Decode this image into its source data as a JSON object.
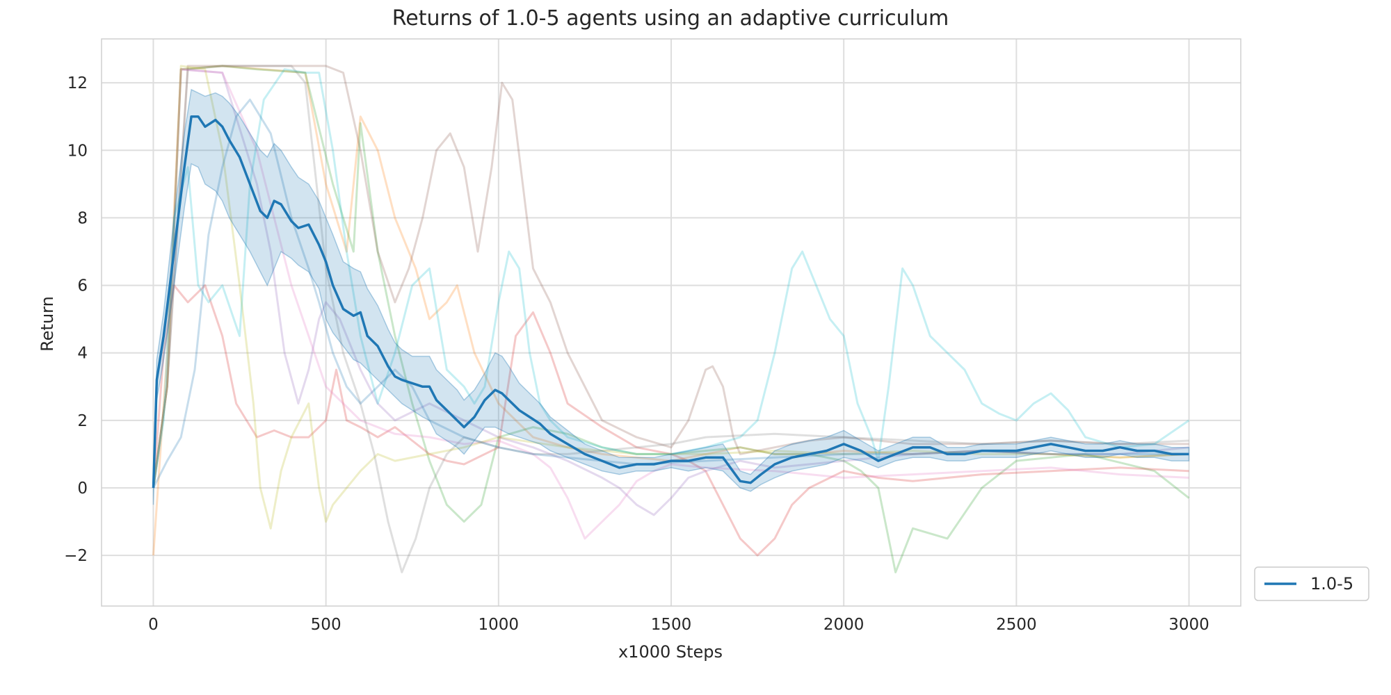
{
  "chart_data": {
    "type": "line",
    "title": "Returns of 1.0-5 agents using an adaptive curriculum",
    "xlabel": "x1000 Steps",
    "ylabel": "Return",
    "xlim": [
      -150,
      3150
    ],
    "ylim": [
      -3.5,
      13.3
    ],
    "xticks": [
      0,
      500,
      1000,
      1500,
      2000,
      2500,
      3000
    ],
    "xtick_labels": [
      "0",
      "500",
      "1000",
      "1500",
      "2000",
      "2500",
      "3000"
    ],
    "yticks": [
      -2,
      0,
      2,
      4,
      6,
      8,
      10,
      12
    ],
    "ytick_labels": [
      "−2",
      "0",
      "2",
      "4",
      "6",
      "8",
      "10",
      "12"
    ],
    "grid": true,
    "legend": {
      "position": "lower-right-outside",
      "entries": [
        "1.0-5"
      ]
    },
    "mean_series": {
      "name": "1.0-5",
      "color": "#1f77b4",
      "x": [
        0,
        10,
        30,
        60,
        90,
        110,
        130,
        150,
        180,
        200,
        220,
        250,
        280,
        310,
        330,
        350,
        370,
        400,
        420,
        450,
        480,
        500,
        520,
        550,
        580,
        600,
        620,
        650,
        680,
        700,
        720,
        750,
        780,
        800,
        820,
        850,
        880,
        900,
        930,
        960,
        990,
        1010,
        1030,
        1060,
        1090,
        1120,
        1150,
        1200,
        1250,
        1300,
        1350,
        1400,
        1450,
        1500,
        1550,
        1600,
        1650,
        1700,
        1730,
        1760,
        1800,
        1850,
        1900,
        1950,
        2000,
        2050,
        2100,
        2150,
        2200,
        2250,
        2300,
        2350,
        2400,
        2450,
        2500,
        2550,
        2600,
        2650,
        2700,
        2750,
        2800,
        2850,
        2900,
        2950,
        3000
      ],
      "y": [
        0.0,
        3.2,
        4.5,
        7.0,
        9.5,
        11.0,
        11.0,
        10.7,
        10.9,
        10.7,
        10.3,
        9.8,
        9.0,
        8.2,
        8.0,
        8.5,
        8.4,
        7.9,
        7.7,
        7.8,
        7.2,
        6.7,
        6.0,
        5.3,
        5.1,
        5.2,
        4.5,
        4.2,
        3.6,
        3.3,
        3.2,
        3.1,
        3.0,
        3.0,
        2.6,
        2.3,
        2.0,
        1.8,
        2.1,
        2.6,
        2.9,
        2.8,
        2.6,
        2.3,
        2.1,
        1.9,
        1.6,
        1.3,
        1.0,
        0.8,
        0.6,
        0.7,
        0.7,
        0.8,
        0.8,
        0.9,
        0.9,
        0.2,
        0.15,
        0.4,
        0.7,
        0.9,
        1.0,
        1.1,
        1.3,
        1.1,
        0.8,
        1.0,
        1.2,
        1.2,
        1.0,
        1.0,
        1.1,
        1.1,
        1.1,
        1.2,
        1.3,
        1.2,
        1.1,
        1.1,
        1.2,
        1.1,
        1.1,
        1.0,
        1.0
      ],
      "lower": [
        -0.5,
        2.6,
        3.8,
        6.0,
        8.3,
        9.6,
        9.5,
        9.0,
        8.8,
        8.5,
        8.0,
        7.5,
        7.0,
        6.4,
        6.0,
        6.5,
        7.0,
        6.8,
        6.6,
        6.4,
        5.9,
        5.0,
        4.6,
        4.2,
        3.8,
        3.7,
        3.5,
        3.2,
        2.9,
        2.7,
        2.5,
        2.3,
        2.1,
        2.0,
        1.6,
        1.4,
        1.2,
        1.0,
        1.4,
        1.8,
        1.8,
        1.7,
        1.6,
        1.5,
        1.4,
        1.3,
        1.1,
        0.9,
        0.7,
        0.5,
        0.4,
        0.5,
        0.5,
        0.6,
        0.5,
        0.6,
        0.5,
        0.0,
        -0.1,
        0.1,
        0.3,
        0.5,
        0.6,
        0.7,
        0.9,
        0.8,
        0.6,
        0.8,
        0.9,
        0.9,
        0.8,
        0.8,
        0.9,
        0.9,
        0.9,
        1.0,
        1.1,
        1.0,
        0.9,
        0.9,
        1.0,
        0.9,
        0.9,
        0.8,
        0.8
      ],
      "upper": [
        0.5,
        3.8,
        5.2,
        8.0,
        10.5,
        11.8,
        11.7,
        11.6,
        11.7,
        11.6,
        11.4,
        11.0,
        10.5,
        10.0,
        9.8,
        10.2,
        10.0,
        9.5,
        9.2,
        9.0,
        8.5,
        8.0,
        7.5,
        6.7,
        6.5,
        6.4,
        5.9,
        5.4,
        4.7,
        4.3,
        4.1,
        3.9,
        3.9,
        3.9,
        3.5,
        3.2,
        2.9,
        2.6,
        2.9,
        3.4,
        4.0,
        3.9,
        3.6,
        3.1,
        2.8,
        2.5,
        2.1,
        1.7,
        1.3,
        1.1,
        0.9,
        0.9,
        0.9,
        1.0,
        1.1,
        1.2,
        1.3,
        0.5,
        0.4,
        0.7,
        1.1,
        1.3,
        1.4,
        1.5,
        1.7,
        1.4,
        1.1,
        1.3,
        1.5,
        1.5,
        1.2,
        1.2,
        1.3,
        1.3,
        1.3,
        1.4,
        1.5,
        1.4,
        1.3,
        1.3,
        1.4,
        1.3,
        1.3,
        1.2,
        1.2
      ]
    },
    "agent_series": [
      {
        "color": "#ff7f0e",
        "x": [
          0,
          40,
          80,
          200,
          440,
          500,
          560,
          600,
          650,
          700,
          760,
          800,
          850,
          880,
          930,
          1000,
          1100,
          1200,
          1300,
          1400,
          1500,
          1600,
          1700,
          1800,
          1900,
          2000,
          2200,
          2400,
          2600,
          2800,
          3000
        ],
        "y": [
          -2.0,
          4.0,
          12.4,
          12.5,
          12.3,
          9.0,
          7.0,
          11.0,
          10.0,
          8.0,
          6.5,
          5.0,
          5.5,
          6.0,
          4.0,
          2.5,
          1.5,
          1.2,
          1.0,
          0.9,
          0.8,
          1.0,
          1.2,
          1.0,
          1.0,
          1.1,
          1.0,
          1.1,
          1.0,
          0.9,
          1.0
        ]
      },
      {
        "color": "#2ca02c",
        "x": [
          0,
          40,
          80,
          200,
          300,
          440,
          520,
          580,
          600,
          650,
          700,
          750,
          800,
          850,
          900,
          950,
          1000,
          1100,
          1200,
          1300,
          1400,
          1500,
          1600,
          1700,
          1800,
          1900,
          2000,
          2050,
          2100,
          2150,
          2200,
          2300,
          2400,
          2500,
          2700,
          2900,
          3000
        ],
        "y": [
          0.0,
          3.0,
          12.4,
          12.5,
          12.4,
          12.3,
          9.0,
          7.0,
          10.8,
          7.0,
          4.5,
          2.5,
          0.8,
          -0.5,
          -1.0,
          -0.5,
          1.5,
          1.8,
          1.6,
          1.2,
          1.0,
          1.0,
          1.1,
          1.2,
          1.0,
          1.0,
          0.8,
          0.5,
          0.0,
          -2.5,
          -1.2,
          -1.5,
          0.0,
          0.8,
          1.0,
          0.5,
          -0.3
        ]
      },
      {
        "color": "#d62728",
        "x": [
          0,
          30,
          60,
          100,
          150,
          200,
          240,
          270,
          300,
          350,
          400,
          450,
          500,
          530,
          560,
          600,
          650,
          700,
          750,
          800,
          850,
          900,
          1000,
          1050,
          1100,
          1150,
          1200,
          1300,
          1400,
          1500,
          1550,
          1600,
          1650,
          1700,
          1750,
          1800,
          1850,
          1900,
          2000,
          2100,
          2200,
          2400,
          2600,
          2800,
          3000
        ],
        "y": [
          0.0,
          4.0,
          6.0,
          5.5,
          6.0,
          4.5,
          2.5,
          2.0,
          1.5,
          1.7,
          1.5,
          1.5,
          2.0,
          3.5,
          2.0,
          1.8,
          1.5,
          1.8,
          1.4,
          1.0,
          0.8,
          0.7,
          1.2,
          4.5,
          5.2,
          4.0,
          2.5,
          1.8,
          1.2,
          1.0,
          0.8,
          0.5,
          -0.5,
          -1.5,
          -2.0,
          -1.5,
          -0.5,
          0.0,
          0.5,
          0.3,
          0.2,
          0.4,
          0.5,
          0.6,
          0.5
        ]
      },
      {
        "color": "#9467bd",
        "x": [
          0,
          40,
          80,
          200,
          300,
          340,
          380,
          420,
          450,
          480,
          500,
          540,
          600,
          650,
          700,
          800,
          900,
          1000,
          1100,
          1200,
          1300,
          1350,
          1400,
          1450,
          1500,
          1550,
          1600,
          1700,
          1800,
          1900,
          2000,
          2200,
          2400,
          2600,
          2800,
          3000
        ],
        "y": [
          0.0,
          3.0,
          12.4,
          12.3,
          9.0,
          7.0,
          4.0,
          2.5,
          3.5,
          5.0,
          5.5,
          5.0,
          3.5,
          2.5,
          2.0,
          2.5,
          2.0,
          1.5,
          1.2,
          0.8,
          0.3,
          0.0,
          -0.5,
          -0.8,
          -0.3,
          0.3,
          0.5,
          0.8,
          0.6,
          0.7,
          0.8,
          1.0,
          1.1,
          1.0,
          1.0,
          1.2
        ]
      },
      {
        "color": "#8c564b",
        "x": [
          0,
          40,
          100,
          300,
          500,
          550,
          600,
          650,
          700,
          740,
          780,
          820,
          860,
          900,
          940,
          980,
          1010,
          1040,
          1070,
          1100,
          1150,
          1200,
          1250,
          1300,
          1400,
          1500,
          1550,
          1600,
          1620,
          1650,
          1680,
          1700,
          1800,
          1900,
          2000,
          2200,
          2400,
          2600,
          2800,
          3000
        ],
        "y": [
          0.0,
          3.0,
          12.5,
          12.5,
          12.5,
          12.3,
          10.0,
          7.0,
          5.5,
          6.5,
          8.0,
          10.0,
          10.5,
          9.5,
          7.0,
          9.5,
          12.0,
          11.5,
          9.0,
          6.5,
          5.5,
          4.0,
          3.0,
          2.0,
          1.5,
          1.2,
          2.0,
          3.5,
          3.6,
          3.0,
          1.5,
          1.0,
          1.2,
          1.4,
          1.5,
          1.3,
          1.3,
          1.4,
          1.3,
          1.3
        ]
      },
      {
        "color": "#e377c2",
        "x": [
          0,
          40,
          80,
          200,
          300,
          350,
          400,
          450,
          500,
          550,
          600,
          700,
          800,
          900,
          1000,
          1050,
          1100,
          1150,
          1200,
          1250,
          1300,
          1350,
          1400,
          1450,
          1500,
          1600,
          1800,
          2000,
          2200,
          2400,
          2600,
          2800,
          3000
        ],
        "y": [
          0.0,
          3.0,
          12.4,
          12.3,
          10.0,
          8.0,
          6.0,
          4.5,
          3.0,
          2.5,
          2.0,
          1.6,
          1.5,
          1.3,
          1.4,
          1.2,
          1.0,
          0.6,
          -0.3,
          -1.5,
          -1.0,
          -0.5,
          0.2,
          0.5,
          0.7,
          0.6,
          0.5,
          0.3,
          0.4,
          0.5,
          0.6,
          0.4,
          0.3
        ]
      },
      {
        "color": "#7f7f7f",
        "x": [
          0,
          40,
          100,
          200,
          300,
          400,
          440,
          500,
          550,
          600,
          640,
          680,
          720,
          760,
          800,
          850,
          900,
          1000,
          1100,
          1200,
          1300,
          1400,
          1500,
          1600,
          1800,
          2000,
          2200,
          2400,
          2600,
          2800,
          3000
        ],
        "y": [
          0.0,
          3.0,
          12.4,
          12.5,
          12.5,
          12.5,
          12.0,
          6.5,
          4.0,
          2.5,
          1.0,
          -1.0,
          -2.5,
          -1.5,
          0.0,
          1.0,
          1.5,
          1.2,
          1.0,
          1.0,
          1.1,
          1.2,
          1.3,
          1.5,
          1.6,
          1.5,
          1.4,
          1.3,
          1.4,
          1.3,
          1.4
        ]
      },
      {
        "color": "#bcbd22",
        "x": [
          0,
          40,
          80,
          150,
          200,
          250,
          290,
          310,
          340,
          370,
          400,
          450,
          480,
          500,
          520,
          560,
          600,
          650,
          700,
          800,
          900,
          1000,
          1200,
          1400,
          1600,
          1800,
          2000,
          2200,
          2400,
          2600,
          2800,
          3000
        ],
        "y": [
          0.0,
          3.0,
          12.5,
          12.4,
          10.0,
          6.0,
          2.5,
          0.0,
          -1.2,
          0.5,
          1.5,
          2.5,
          0.0,
          -1.0,
          -0.5,
          0.0,
          0.5,
          1.0,
          0.8,
          1.0,
          1.2,
          1.5,
          1.2,
          1.0,
          1.0,
          1.1,
          1.0,
          1.1,
          1.0,
          1.0,
          0.9,
          1.0
        ]
      },
      {
        "color": "#17becf",
        "x": [
          0,
          30,
          60,
          100,
          130,
          160,
          200,
          250,
          280,
          320,
          380,
          440,
          480,
          520,
          560,
          600,
          650,
          700,
          750,
          800,
          850,
          900,
          930,
          960,
          1000,
          1030,
          1060,
          1090,
          1120,
          1150,
          1200,
          1300,
          1400,
          1500,
          1600,
          1700,
          1750,
          1800,
          1850,
          1880,
          1920,
          1960,
          2000,
          2040,
          2080,
          2100,
          2130,
          2170,
          2200,
          2250,
          2300,
          2350,
          2400,
          2450,
          2500,
          2550,
          2600,
          2650,
          2700,
          2800,
          2900,
          3000
        ],
        "y": [
          0.0,
          2.0,
          8.0,
          9.5,
          6.0,
          5.5,
          6.0,
          4.5,
          9.0,
          11.5,
          12.4,
          12.3,
          12.3,
          10.0,
          7.0,
          4.5,
          2.5,
          4.0,
          6.0,
          6.5,
          3.5,
          3.0,
          2.5,
          3.0,
          5.5,
          7.0,
          6.5,
          4.0,
          2.5,
          2.0,
          1.5,
          1.2,
          1.0,
          1.0,
          1.2,
          1.5,
          2.0,
          4.0,
          6.5,
          7.0,
          6.0,
          5.0,
          4.5,
          2.5,
          1.5,
          0.8,
          3.0,
          6.5,
          6.0,
          4.5,
          4.0,
          3.5,
          2.5,
          2.2,
          2.0,
          2.5,
          2.8,
          2.3,
          1.5,
          1.2,
          1.3,
          2.0
        ]
      },
      {
        "color": "#1f77b4",
        "x": [
          0,
          40,
          80,
          120,
          160,
          200,
          240,
          280,
          340,
          400,
          450,
          480,
          520,
          560,
          600,
          650,
          700,
          750,
          800,
          900,
          1000,
          1100,
          1200,
          1300,
          1400,
          1600,
          1800,
          2000,
          2200,
          2400,
          2600,
          2800,
          3000
        ],
        "y": [
          0.0,
          0.8,
          1.5,
          3.5,
          7.5,
          9.5,
          11.0,
          11.5,
          10.5,
          8.0,
          6.5,
          5.5,
          4.0,
          3.0,
          2.5,
          3.0,
          3.5,
          3.0,
          2.0,
          1.5,
          1.2,
          1.0,
          0.9,
          0.8,
          0.7,
          0.8,
          0.9,
          1.0,
          1.0,
          1.1,
          1.0,
          1.0,
          1.0
        ]
      }
    ]
  }
}
